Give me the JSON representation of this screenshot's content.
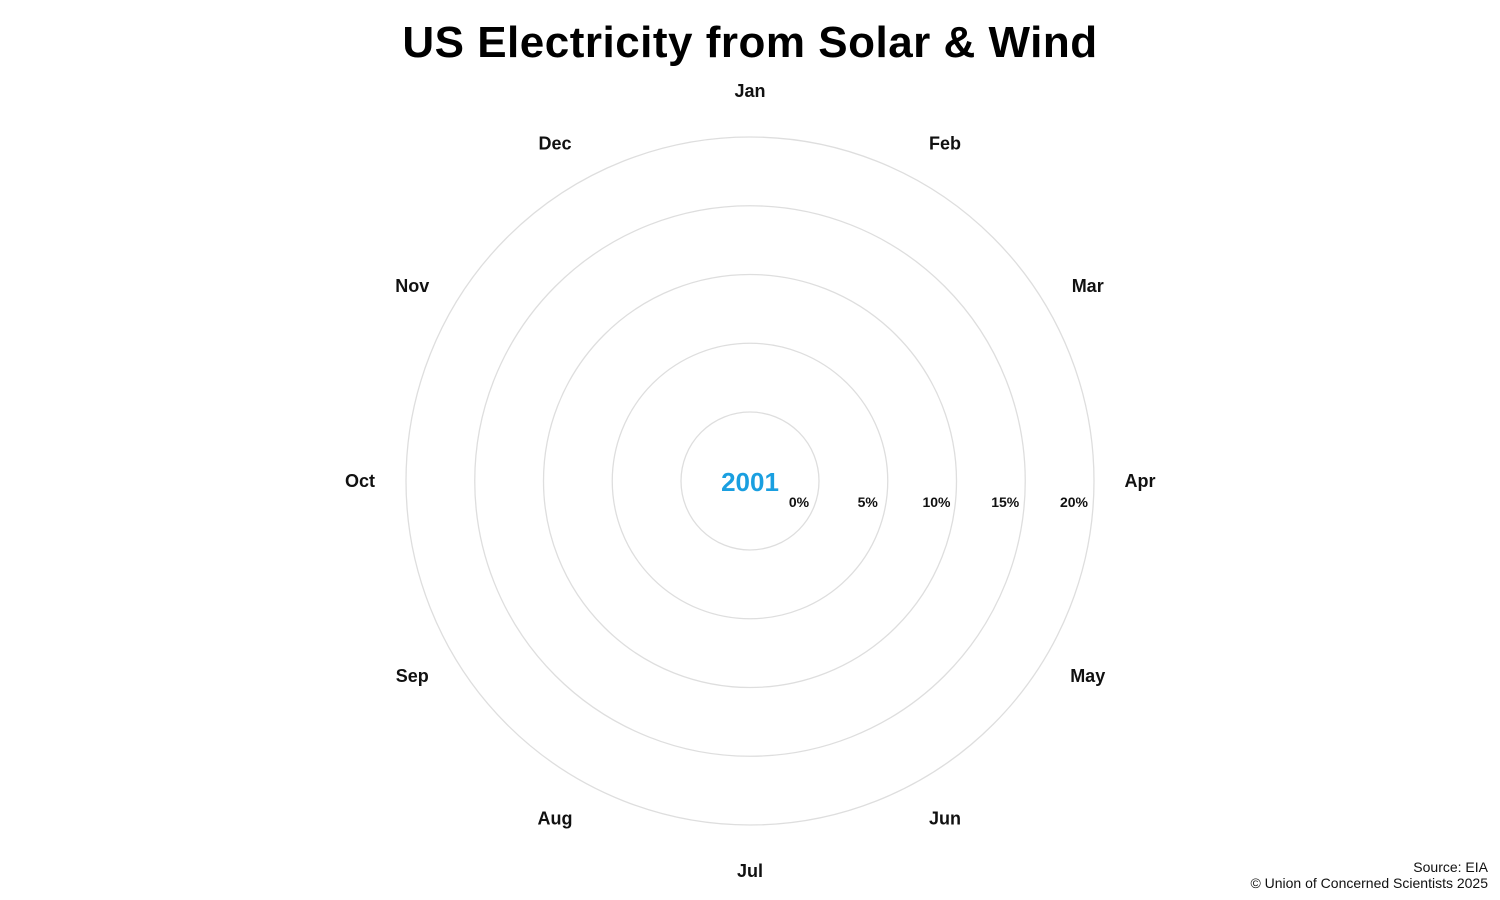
{
  "title": "US Electricity from Solar & Wind",
  "source": "Source: EIA",
  "copyright": "© Union of Concerned Scientists 2025",
  "colors": {
    "year": "#1a9fe0",
    "grid": "#dedede"
  },
  "chart_data": {
    "type": "radial",
    "title": "US Electricity from Solar & Wind",
    "current_year": "2001",
    "categories": [
      "Jan",
      "Feb",
      "Mar",
      "Apr",
      "May",
      "Jun",
      "Jul",
      "Aug",
      "Sep",
      "Oct",
      "Nov",
      "Dec"
    ],
    "radial_ticks": [
      0,
      5,
      10,
      15,
      20
    ],
    "radial_tick_labels": [
      "0%",
      "5%",
      "10%",
      "15%",
      "20%"
    ],
    "radial_range": [
      -5,
      20
    ],
    "grid": true,
    "series": []
  }
}
